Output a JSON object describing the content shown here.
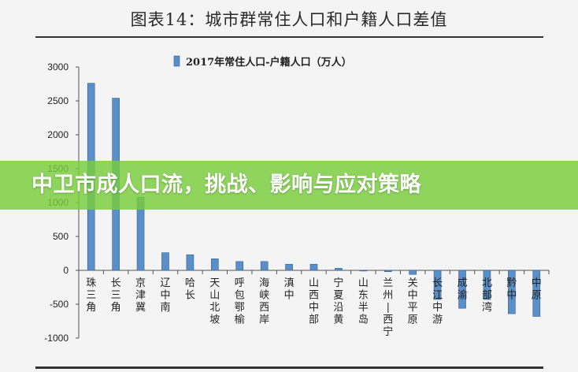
{
  "figure_title": "图表14：城市群常住人口和户籍人口差值",
  "banner": {
    "text": "中卫市成人口流，挑战、影响与应对策略"
  },
  "colors": {
    "bar": "#5b8fc7",
    "bar_edge": "#2f5f94",
    "banner": "#78cd3c"
  },
  "chart_data": {
    "type": "bar",
    "legend": {
      "label": "2017年常住人口-户籍人口（万人）",
      "position": "top-center"
    },
    "ylim": [
      -1000,
      3000
    ],
    "yticks": [
      3000,
      2500,
      2000,
      1500,
      1000,
      500,
      0,
      -500,
      -1000
    ],
    "categories": [
      "珠三角",
      "长三角",
      "京津冀",
      "辽中南",
      "哈长",
      "天山北坡",
      "呼包鄂榆",
      "海峡西岸",
      "滇中",
      "山西中部",
      "宁夏沿黄",
      "山东半岛",
      "兰州—西宁",
      "关中平原",
      "长江中游",
      "成渝",
      "北部湾",
      "黔中",
      "中原"
    ],
    "category_lines": [
      [
        "珠",
        "三",
        "角"
      ],
      [
        "长",
        "三",
        "角"
      ],
      [
        "京",
        "津",
        "冀"
      ],
      [
        "辽",
        "中",
        "南"
      ],
      [
        "哈",
        "长"
      ],
      [
        "天",
        "山",
        "北",
        "坡"
      ],
      [
        "呼",
        "包",
        "鄂",
        "榆"
      ],
      [
        "海",
        "峡",
        "西",
        "岸"
      ],
      [
        "滇",
        "中"
      ],
      [
        "山",
        "西",
        "中",
        "部"
      ],
      [
        "宁",
        "夏",
        "沿",
        "黄"
      ],
      [
        "山",
        "东",
        "半",
        "岛"
      ],
      [
        "兰",
        "州",
        "|",
        "西",
        "宁"
      ],
      [
        "关",
        "中",
        "平",
        "原"
      ],
      [
        "长",
        "江",
        "中",
        "游"
      ],
      [
        "成",
        "渝"
      ],
      [
        "北",
        "部",
        "湾"
      ],
      [
        "黔",
        "中"
      ],
      [
        "中",
        "原"
      ]
    ],
    "series": [
      {
        "values": [
          2760,
          2540,
          1080,
          260,
          230,
          170,
          130,
          130,
          90,
          90,
          30,
          -10,
          -20,
          -60,
          -430,
          -560,
          -430,
          -640,
          -680
        ]
      }
    ],
    "grid": false
  }
}
